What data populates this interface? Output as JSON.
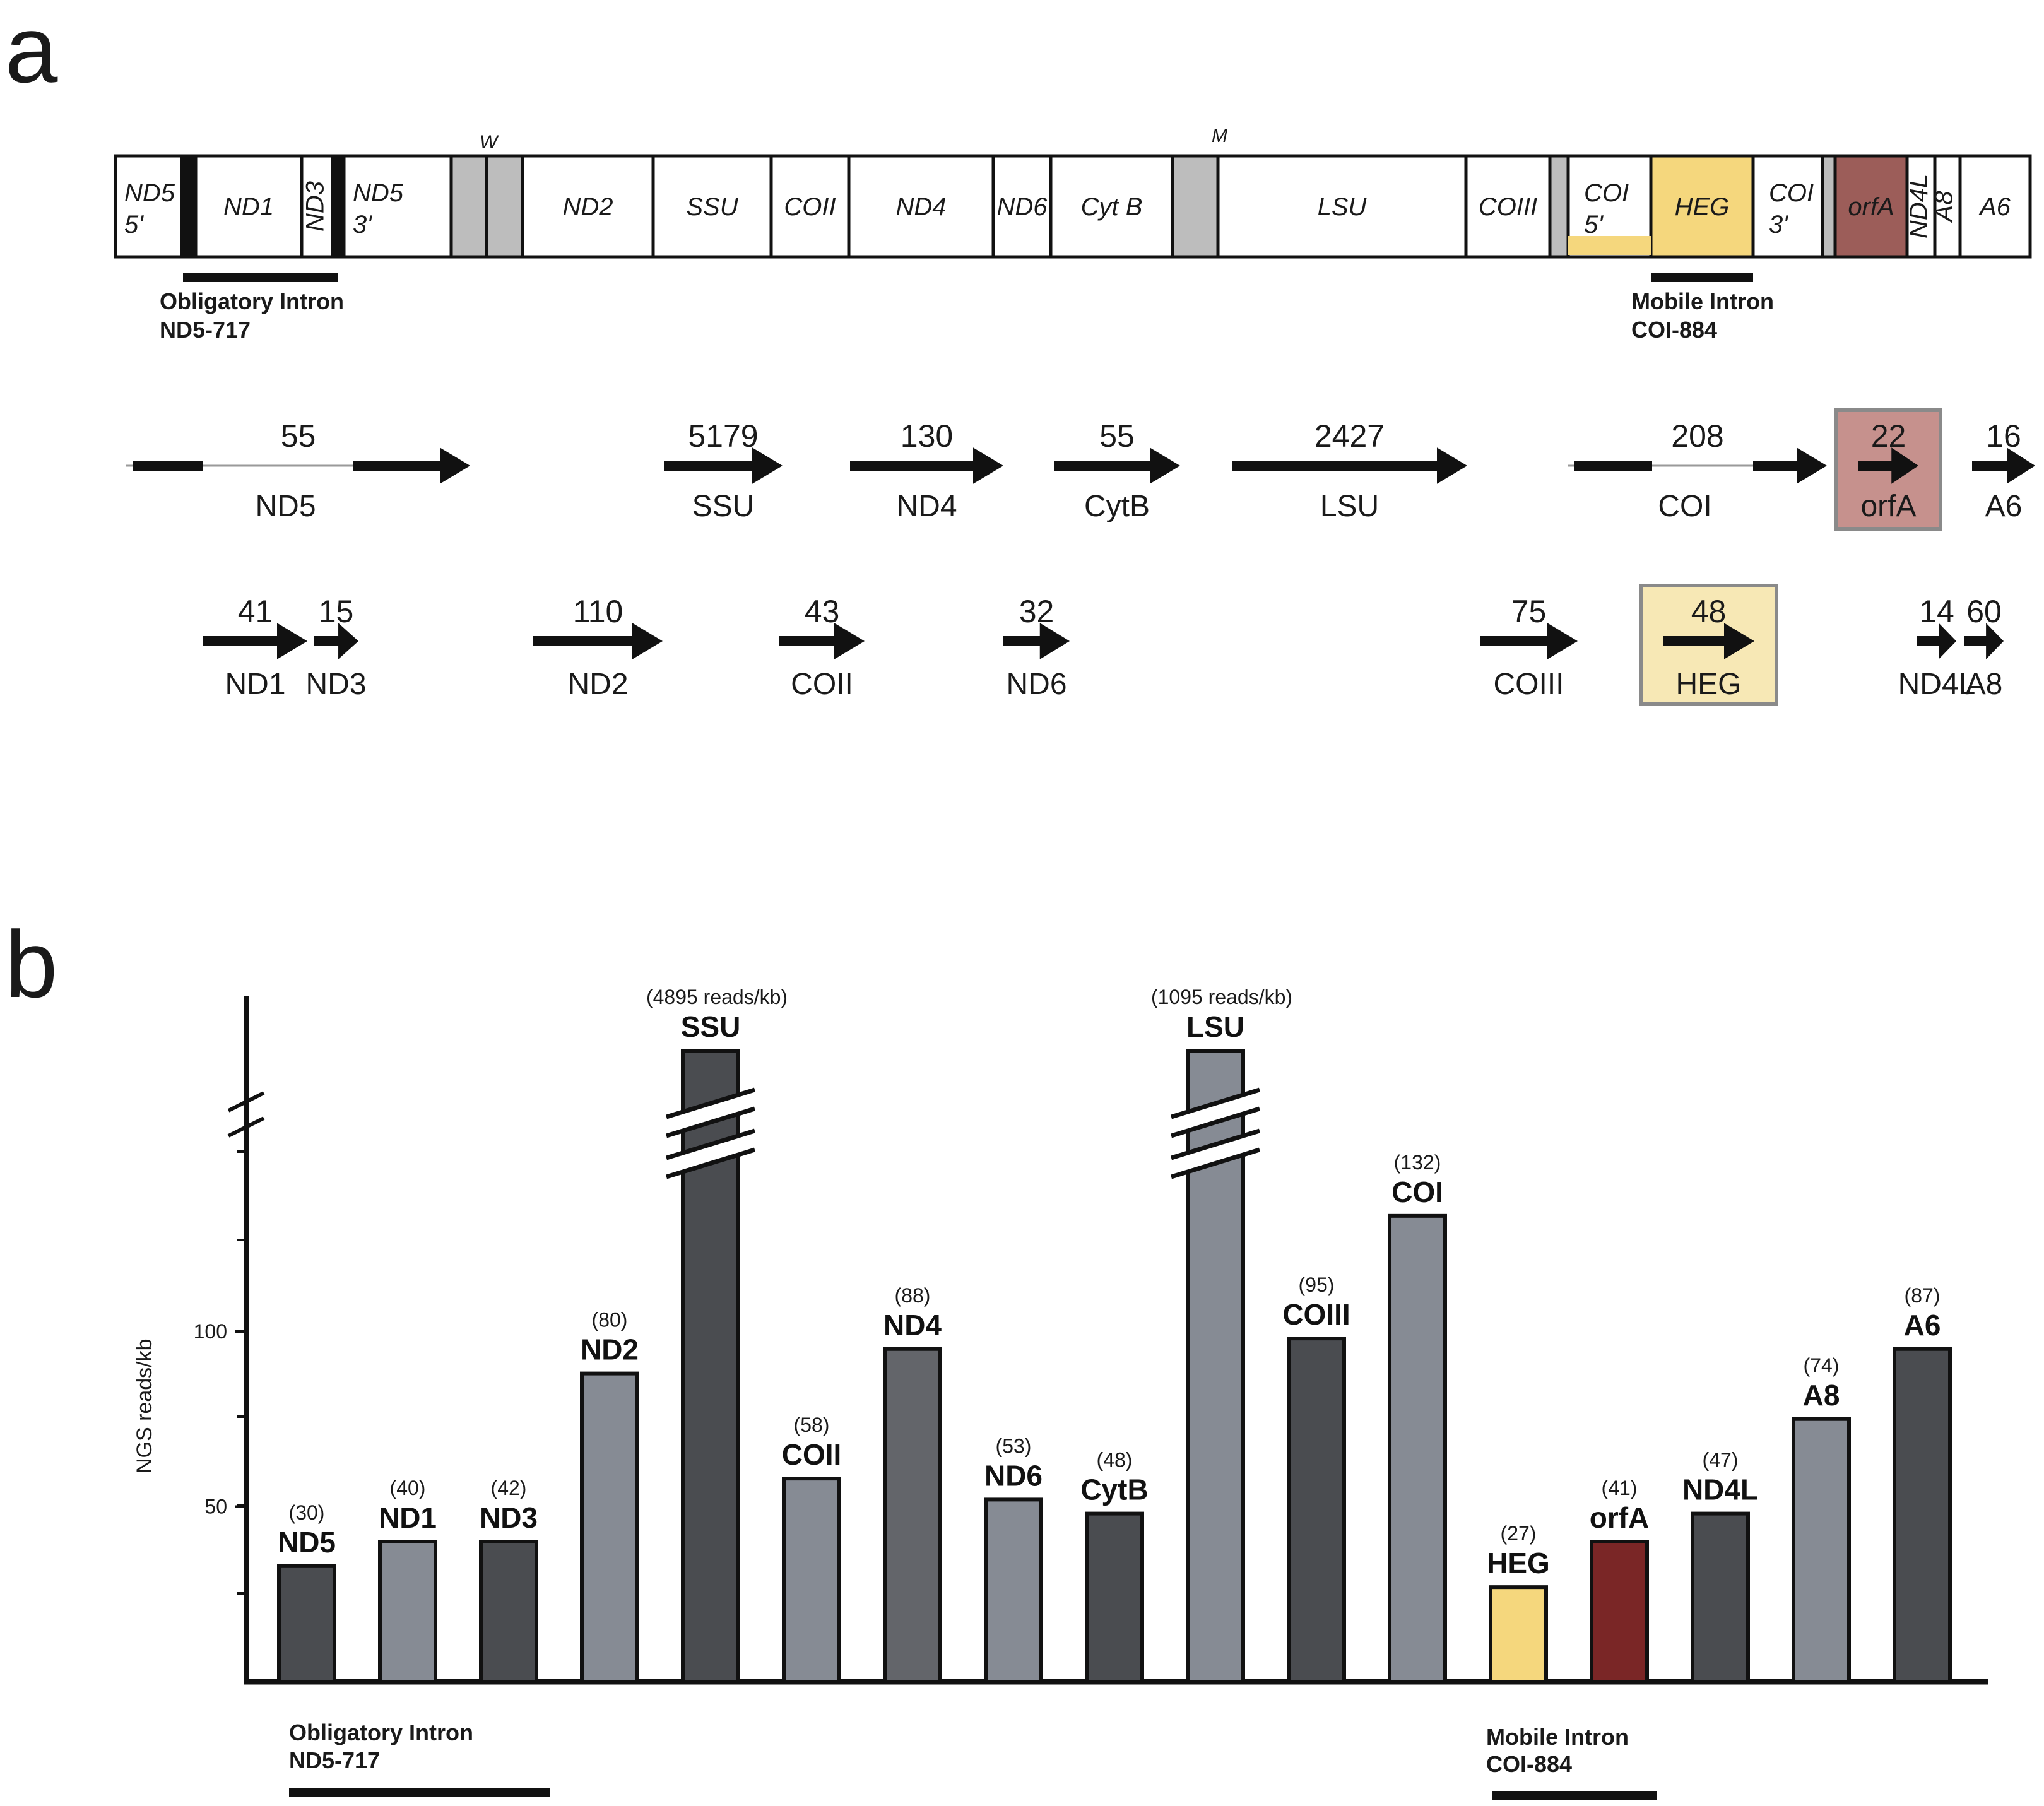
{
  "panel_labels": {
    "a": "a",
    "b": "b"
  },
  "colors": {
    "segment_fill": "#ffffff",
    "trna_fill": "#bdbdbd",
    "heg": "#f5d77d",
    "heg_light": "#f7e8b5",
    "orfA": "#9c5d59",
    "orfA_light": "#c6918d",
    "orfA_bar": "#7a2626",
    "bar_dark": "#4a4c50",
    "bar_mid": "#63656a",
    "bar_light": "#868b94",
    "bar_outline": "#111111",
    "arrow": "#111111"
  },
  "genome_map": {
    "segments": [
      {
        "label": "ND5",
        "label2": "5'",
        "type": "gene"
      },
      {
        "label": "",
        "type": "black"
      },
      {
        "label": "ND1",
        "type": "gene"
      },
      {
        "label": "ND3",
        "type": "gene-vertical"
      },
      {
        "label": "",
        "type": "black"
      },
      {
        "label": "ND5",
        "label2": "3'",
        "type": "gene"
      },
      {
        "label": "",
        "type": "trna"
      },
      {
        "label": "",
        "type": "trna"
      },
      {
        "label": "ND2",
        "type": "gene"
      },
      {
        "label": "SSU",
        "type": "gene"
      },
      {
        "label": "COII",
        "type": "gene"
      },
      {
        "label": "ND4",
        "type": "gene"
      },
      {
        "label": "ND6",
        "type": "gene-small"
      },
      {
        "label": "Cyt B",
        "type": "gene"
      },
      {
        "label": "",
        "type": "trna"
      },
      {
        "label": "LSU",
        "type": "gene"
      },
      {
        "label": "COIII",
        "type": "gene"
      },
      {
        "label": "",
        "type": "trna"
      },
      {
        "label": "COI",
        "label2": "5'",
        "type": "gene-small"
      },
      {
        "label": "HEG",
        "type": "heg"
      },
      {
        "label": "COI",
        "label2": "3'",
        "type": "gene-small"
      },
      {
        "label": "",
        "type": "trna"
      },
      {
        "label": "orfA",
        "type": "orfA"
      },
      {
        "label": "ND4L",
        "type": "gene-vertical"
      },
      {
        "label": "A8",
        "type": "gene-vertical-small"
      },
      {
        "label": "A6",
        "type": "gene"
      }
    ],
    "trna_labels": [
      "W",
      "M"
    ],
    "obligatory_intron": {
      "line1": "Obligatory Intron",
      "line2": "ND5-717"
    },
    "mobile_intron": {
      "line1": "Mobile Intron",
      "line2": "COI-884"
    }
  },
  "transcripts": {
    "row1": [
      {
        "name": "ND5",
        "count": "55",
        "style": "split"
      },
      {
        "name": "SSU",
        "count": "5179",
        "style": "arrow"
      },
      {
        "name": "ND4",
        "count": "130",
        "style": "arrow"
      },
      {
        "name": "CytB",
        "count": "55",
        "style": "arrow"
      },
      {
        "name": "LSU",
        "count": "2427",
        "style": "arrow"
      },
      {
        "name": "COI",
        "count": "208",
        "style": "split"
      },
      {
        "name": "orfA",
        "count": "22",
        "style": "boxed-orfA"
      },
      {
        "name": "A6",
        "count": "16",
        "style": "arrow"
      }
    ],
    "row2": [
      {
        "name": "ND1",
        "count": "41",
        "style": "arrow"
      },
      {
        "name": "ND3",
        "count": "15",
        "style": "arrow"
      },
      {
        "name": "ND2",
        "count": "110",
        "style": "arrow"
      },
      {
        "name": "COII",
        "count": "43",
        "style": "arrow"
      },
      {
        "name": "ND6",
        "count": "32",
        "style": "arrow"
      },
      {
        "name": "COIII",
        "count": "75",
        "style": "arrow"
      },
      {
        "name": "HEG",
        "count": "48",
        "style": "boxed-heg"
      },
      {
        "name": "ND4L",
        "count": "14",
        "style": "arrow"
      },
      {
        "name": "A8",
        "count": "60",
        "style": "arrow"
      }
    ]
  },
  "chart_data": {
    "type": "bar",
    "title": "",
    "xlabel": "",
    "ylabel": "NGS reads/kb",
    "ylim": [
      0,
      180
    ],
    "yticks": [
      50,
      100
    ],
    "axis_break": true,
    "categories": [
      "ND5",
      "ND1",
      "ND3",
      "ND2",
      "SSU",
      "COII",
      "ND4",
      "ND6",
      "CytB",
      "LSU",
      "COIII",
      "COI",
      "HEG",
      "orfA",
      "ND4L",
      "A8",
      "A6"
    ],
    "values": [
      30,
      40,
      42,
      80,
      4895,
      58,
      88,
      53,
      48,
      1095,
      95,
      132,
      27,
      41,
      47,
      74,
      87
    ],
    "value_labels": [
      "(30)",
      "(40)",
      "(42)",
      "(80)",
      "(4895 reads/kb)",
      "(58)",
      "(88)",
      "(53)",
      "(48)",
      "(1095 reads/kb)",
      "(95)",
      "(132)",
      "(27)",
      "(41)",
      "(47)",
      "(74)",
      "(87)"
    ],
    "bar_heights": [
      33,
      40,
      40,
      88,
      180,
      58,
      95,
      52,
      48,
      180,
      98,
      133,
      27,
      40,
      48,
      75,
      95
    ],
    "bar_colors": [
      "bar_dark",
      "bar_light",
      "bar_dark",
      "bar_light",
      "bar_dark",
      "bar_light",
      "bar_mid",
      "bar_light",
      "bar_dark",
      "bar_light",
      "bar_dark",
      "bar_light",
      "heg",
      "orfA_bar",
      "bar_dark",
      "bar_light",
      "bar_dark"
    ],
    "broken_bars": [
      "SSU",
      "LSU"
    ],
    "annotations": [
      {
        "line1": "Obligatory Intron",
        "line2": "ND5-717"
      },
      {
        "line1": "Mobile Intron",
        "line2": "COI-884"
      }
    ]
  }
}
